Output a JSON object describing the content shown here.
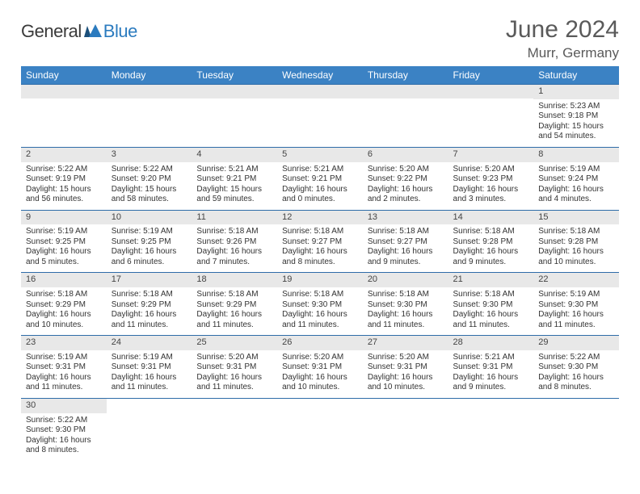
{
  "logo": {
    "dark": "General",
    "blue": "Blue"
  },
  "title": "June 2024",
  "location": "Murr, Germany",
  "colors": {
    "header_bg": "#3b82c4",
    "header_text": "#ffffff",
    "row_border": "#2e6ca8",
    "date_bar_bg": "#e8e8e8",
    "body_text": "#333333",
    "title_text": "#5a5a5a",
    "logo_blue": "#2b7bbf"
  },
  "day_headers": [
    "Sunday",
    "Monday",
    "Tuesday",
    "Wednesday",
    "Thursday",
    "Friday",
    "Saturday"
  ],
  "weeks": [
    [
      null,
      null,
      null,
      null,
      null,
      null,
      {
        "d": "1",
        "sr": "Sunrise: 5:23 AM",
        "ss": "Sunset: 9:18 PM",
        "dl1": "Daylight: 15 hours",
        "dl2": "and 54 minutes."
      }
    ],
    [
      {
        "d": "2",
        "sr": "Sunrise: 5:22 AM",
        "ss": "Sunset: 9:19 PM",
        "dl1": "Daylight: 15 hours",
        "dl2": "and 56 minutes."
      },
      {
        "d": "3",
        "sr": "Sunrise: 5:22 AM",
        "ss": "Sunset: 9:20 PM",
        "dl1": "Daylight: 15 hours",
        "dl2": "and 58 minutes."
      },
      {
        "d": "4",
        "sr": "Sunrise: 5:21 AM",
        "ss": "Sunset: 9:21 PM",
        "dl1": "Daylight: 15 hours",
        "dl2": "and 59 minutes."
      },
      {
        "d": "5",
        "sr": "Sunrise: 5:21 AM",
        "ss": "Sunset: 9:21 PM",
        "dl1": "Daylight: 16 hours",
        "dl2": "and 0 minutes."
      },
      {
        "d": "6",
        "sr": "Sunrise: 5:20 AM",
        "ss": "Sunset: 9:22 PM",
        "dl1": "Daylight: 16 hours",
        "dl2": "and 2 minutes."
      },
      {
        "d": "7",
        "sr": "Sunrise: 5:20 AM",
        "ss": "Sunset: 9:23 PM",
        "dl1": "Daylight: 16 hours",
        "dl2": "and 3 minutes."
      },
      {
        "d": "8",
        "sr": "Sunrise: 5:19 AM",
        "ss": "Sunset: 9:24 PM",
        "dl1": "Daylight: 16 hours",
        "dl2": "and 4 minutes."
      }
    ],
    [
      {
        "d": "9",
        "sr": "Sunrise: 5:19 AM",
        "ss": "Sunset: 9:25 PM",
        "dl1": "Daylight: 16 hours",
        "dl2": "and 5 minutes."
      },
      {
        "d": "10",
        "sr": "Sunrise: 5:19 AM",
        "ss": "Sunset: 9:25 PM",
        "dl1": "Daylight: 16 hours",
        "dl2": "and 6 minutes."
      },
      {
        "d": "11",
        "sr": "Sunrise: 5:18 AM",
        "ss": "Sunset: 9:26 PM",
        "dl1": "Daylight: 16 hours",
        "dl2": "and 7 minutes."
      },
      {
        "d": "12",
        "sr": "Sunrise: 5:18 AM",
        "ss": "Sunset: 9:27 PM",
        "dl1": "Daylight: 16 hours",
        "dl2": "and 8 minutes."
      },
      {
        "d": "13",
        "sr": "Sunrise: 5:18 AM",
        "ss": "Sunset: 9:27 PM",
        "dl1": "Daylight: 16 hours",
        "dl2": "and 9 minutes."
      },
      {
        "d": "14",
        "sr": "Sunrise: 5:18 AM",
        "ss": "Sunset: 9:28 PM",
        "dl1": "Daylight: 16 hours",
        "dl2": "and 9 minutes."
      },
      {
        "d": "15",
        "sr": "Sunrise: 5:18 AM",
        "ss": "Sunset: 9:28 PM",
        "dl1": "Daylight: 16 hours",
        "dl2": "and 10 minutes."
      }
    ],
    [
      {
        "d": "16",
        "sr": "Sunrise: 5:18 AM",
        "ss": "Sunset: 9:29 PM",
        "dl1": "Daylight: 16 hours",
        "dl2": "and 10 minutes."
      },
      {
        "d": "17",
        "sr": "Sunrise: 5:18 AM",
        "ss": "Sunset: 9:29 PM",
        "dl1": "Daylight: 16 hours",
        "dl2": "and 11 minutes."
      },
      {
        "d": "18",
        "sr": "Sunrise: 5:18 AM",
        "ss": "Sunset: 9:29 PM",
        "dl1": "Daylight: 16 hours",
        "dl2": "and 11 minutes."
      },
      {
        "d": "19",
        "sr": "Sunrise: 5:18 AM",
        "ss": "Sunset: 9:30 PM",
        "dl1": "Daylight: 16 hours",
        "dl2": "and 11 minutes."
      },
      {
        "d": "20",
        "sr": "Sunrise: 5:18 AM",
        "ss": "Sunset: 9:30 PM",
        "dl1": "Daylight: 16 hours",
        "dl2": "and 11 minutes."
      },
      {
        "d": "21",
        "sr": "Sunrise: 5:18 AM",
        "ss": "Sunset: 9:30 PM",
        "dl1": "Daylight: 16 hours",
        "dl2": "and 11 minutes."
      },
      {
        "d": "22",
        "sr": "Sunrise: 5:19 AM",
        "ss": "Sunset: 9:30 PM",
        "dl1": "Daylight: 16 hours",
        "dl2": "and 11 minutes."
      }
    ],
    [
      {
        "d": "23",
        "sr": "Sunrise: 5:19 AM",
        "ss": "Sunset: 9:31 PM",
        "dl1": "Daylight: 16 hours",
        "dl2": "and 11 minutes."
      },
      {
        "d": "24",
        "sr": "Sunrise: 5:19 AM",
        "ss": "Sunset: 9:31 PM",
        "dl1": "Daylight: 16 hours",
        "dl2": "and 11 minutes."
      },
      {
        "d": "25",
        "sr": "Sunrise: 5:20 AM",
        "ss": "Sunset: 9:31 PM",
        "dl1": "Daylight: 16 hours",
        "dl2": "and 11 minutes."
      },
      {
        "d": "26",
        "sr": "Sunrise: 5:20 AM",
        "ss": "Sunset: 9:31 PM",
        "dl1": "Daylight: 16 hours",
        "dl2": "and 10 minutes."
      },
      {
        "d": "27",
        "sr": "Sunrise: 5:20 AM",
        "ss": "Sunset: 9:31 PM",
        "dl1": "Daylight: 16 hours",
        "dl2": "and 10 minutes."
      },
      {
        "d": "28",
        "sr": "Sunrise: 5:21 AM",
        "ss": "Sunset: 9:31 PM",
        "dl1": "Daylight: 16 hours",
        "dl2": "and 9 minutes."
      },
      {
        "d": "29",
        "sr": "Sunrise: 5:22 AM",
        "ss": "Sunset: 9:30 PM",
        "dl1": "Daylight: 16 hours",
        "dl2": "and 8 minutes."
      }
    ],
    [
      {
        "d": "30",
        "sr": "Sunrise: 5:22 AM",
        "ss": "Sunset: 9:30 PM",
        "dl1": "Daylight: 16 hours",
        "dl2": "and 8 minutes."
      },
      null,
      null,
      null,
      null,
      null,
      null
    ]
  ]
}
